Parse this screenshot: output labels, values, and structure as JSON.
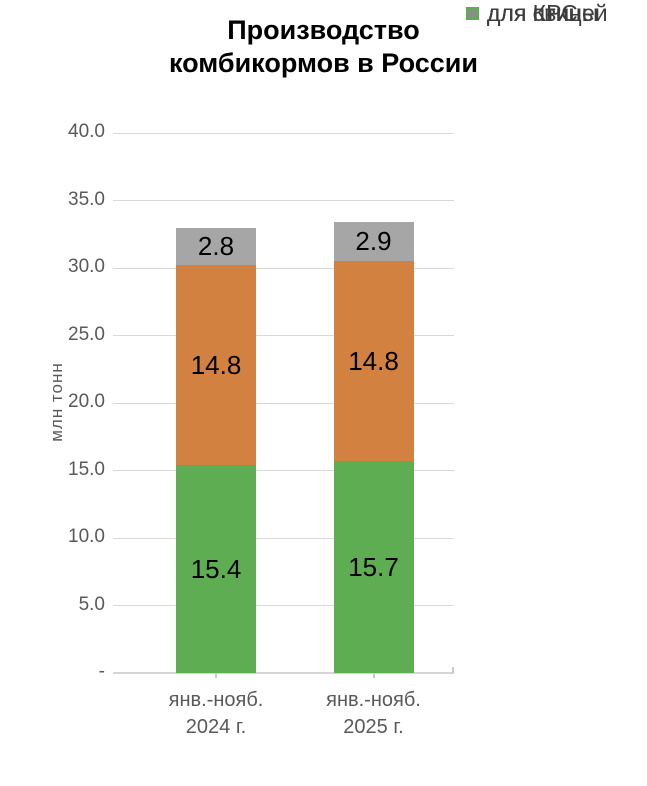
{
  "title": {
    "line1": "Производство",
    "line2": "комбикормов в России"
  },
  "y_axis": {
    "title": "млн тонн",
    "max": 40,
    "tick_values": [
      40,
      35,
      30,
      25,
      20,
      15,
      10,
      5,
      0
    ],
    "tick_labels": [
      "40.0",
      "35.0",
      "30.0",
      "25.0",
      "20.0",
      "15.0",
      "10.0",
      "5.0",
      "-"
    ]
  },
  "legend": [
    {
      "label": "для КРС",
      "color": "#A6A6A6",
      "inner": ""
    },
    {
      "label": "для свиней",
      "color": "#D28140",
      "inner": ""
    },
    {
      "label": "для птицы",
      "color": "#5FAD52",
      "inner": "#8C8C8C"
    }
  ],
  "chart_data": {
    "type": "bar",
    "stacked": true,
    "title": "Производство комбикормов в России",
    "ylabel": "млн тонн",
    "ylim": [
      0,
      40
    ],
    "grid": true,
    "legend_position": "right",
    "value_labels": true,
    "categories": [
      "янв.-нояб.\n2024 г.",
      "янв.-нояб.\n2025 г."
    ],
    "series": [
      {
        "name": "для птицы",
        "color": "#5FAD52",
        "values": [
          15.4,
          15.7
        ]
      },
      {
        "name": "для свиней",
        "color": "#D28140",
        "values": [
          14.8,
          14.8
        ]
      },
      {
        "name": "для КРС",
        "color": "#A6A6A6",
        "values": [
          2.8,
          2.9
        ]
      }
    ],
    "totals": [
      33.0,
      33.4
    ]
  },
  "colors": {
    "gridline": "#D9D9D9",
    "axis_text": "#595959",
    "data_label": "#000000"
  }
}
